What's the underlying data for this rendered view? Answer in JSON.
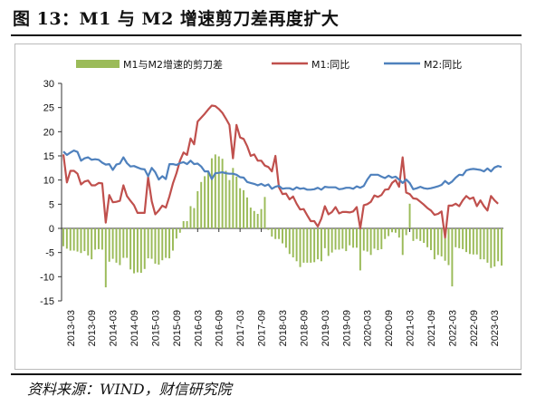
{
  "figure": {
    "title": "图 13：M1 与 M2 增速剪刀差再度扩大",
    "source": "资料来源：WIND，财信研究院"
  },
  "colors": {
    "spread": "#9bbb59",
    "m1": "#c0504d",
    "m2": "#4f81bd"
  },
  "chart_data": {
    "type": "bar+line",
    "x_start": "2013-01",
    "x_end": "2023-03",
    "x_tick_labels": [
      "2013-03",
      "2013-09",
      "2014-03",
      "2014-09",
      "2015-03",
      "2015-09",
      "2016-03",
      "2016-09",
      "2017-03",
      "2017-09",
      "2018-03",
      "2018-09",
      "2019-03",
      "2019-09",
      "2020-03",
      "2020-09",
      "2021-03",
      "2021-09",
      "2022-03",
      "2022-09",
      "2023-03"
    ],
    "ylim": [
      -15,
      30
    ],
    "y_ticks": [
      -15,
      -10,
      -5,
      0,
      5,
      10,
      15,
      20,
      25,
      30
    ],
    "grid": false,
    "legend_position": "top",
    "legend": [
      "M1与M2增速的剪刀差",
      "M1:同比",
      "M2:同比"
    ],
    "series": [
      {
        "name": "M1与M2增速的剪刀差",
        "type": "bar",
        "values": [
          -3.7,
          -4.2,
          -4.6,
          -4.6,
          -4.8,
          -5.1,
          -4.7,
          -5.6,
          -6.4,
          -4.4,
          -4.3,
          -4.4,
          -12.2,
          -6.9,
          -6.3,
          -7.1,
          -7.6,
          -6.1,
          -6.1,
          -8.5,
          -9.3,
          -9.1,
          -9.2,
          -8.4,
          -6.2,
          -6.3,
          -7.3,
          -7.5,
          -6.6,
          -6.1,
          -6.2,
          -4.6,
          -2.1,
          -0.9,
          1.5,
          1.5,
          4.6,
          4.2,
          7.7,
          9.6,
          10.8,
          11.8,
          14.5,
          15.3,
          14.9,
          14.4,
          11.9,
          10.0,
          12.5,
          10.7,
          8.3,
          7.9,
          6.4,
          4.3,
          3.6,
          3.0,
          4.0,
          6.5,
          -0.3,
          -1.7,
          -2.2,
          -2.2,
          -3.1,
          -4.0,
          -5.3,
          -6.0,
          -6.8,
          -8.0,
          -7.1,
          -7.1,
          -7.1,
          -7.0,
          -6.4,
          -6.8,
          -4.1,
          -5.7,
          -5.0,
          -4.4,
          -4.4,
          -4.2,
          -4.7,
          -3.5,
          -4.0,
          -4.0,
          -8.7,
          -4.6,
          -4.8,
          -5.5,
          -4.2,
          -4.5,
          -4.3,
          -2.2,
          -1.6,
          -0.8,
          -0.9,
          -1.9,
          -5.5,
          -1.4,
          5.1,
          -2.6,
          -2.2,
          -2.6,
          -3.0,
          -3.9,
          -4.5,
          -6.4,
          -5.5,
          -5.8,
          -6.7,
          -7.6,
          -12.0,
          -3.9,
          -4.1,
          -4.3,
          -4.9,
          -5.3,
          -5.4,
          -5.4,
          -6.4,
          -6.4,
          -7.1,
          -8.2,
          -7.9,
          -6.8,
          -7.7
        ],
        "note": "monthly, 2013-01 to 2023-03"
      },
      {
        "name": "M1:同比",
        "type": "line",
        "values": [
          15.3,
          9.5,
          11.9,
          11.9,
          11.3,
          9.1,
          9.7,
          9.9,
          8.9,
          8.9,
          9.4,
          9.3,
          1.2,
          6.9,
          5.4,
          5.5,
          5.7,
          8.9,
          6.7,
          5.7,
          4.8,
          3.2,
          3.2,
          3.2,
          10.6,
          5.6,
          2.9,
          3.7,
          4.7,
          4.3,
          6.6,
          9.3,
          11.4,
          14.0,
          15.7,
          15.2,
          18.6,
          17.4,
          22.1,
          22.9,
          23.7,
          24.6,
          25.4,
          25.3,
          24.7,
          23.9,
          22.7,
          21.4,
          14.5,
          21.4,
          18.8,
          18.5,
          17.0,
          15.0,
          15.3,
          14.0,
          14.0,
          13.0,
          12.7,
          11.8,
          15.0,
          8.5,
          7.1,
          7.2,
          6.0,
          6.6,
          5.1,
          3.9,
          4.0,
          2.7,
          1.5,
          1.5,
          0.4,
          2.0,
          4.6,
          2.9,
          3.4,
          4.4,
          3.1,
          3.4,
          3.4,
          3.3,
          3.5,
          4.4,
          0.0,
          4.8,
          5.0,
          5.5,
          6.8,
          6.5,
          6.9,
          8.0,
          8.1,
          9.4,
          10.0,
          8.6,
          14.7,
          7.4,
          7.1,
          6.2,
          6.1,
          5.5,
          4.9,
          4.2,
          3.7,
          2.8,
          3.0,
          3.5,
          -1.9,
          4.7,
          4.7,
          5.1,
          4.6,
          5.8,
          6.7,
          6.1,
          6.4,
          4.6,
          5.8,
          4.6,
          3.7,
          6.7,
          5.8,
          5.1
        ],
        "note": "monthly, 2013-01 to 2023-03"
      },
      {
        "name": "M2:同比",
        "type": "line",
        "values": [
          15.9,
          15.2,
          15.7,
          16.1,
          15.8,
          14.0,
          14.5,
          14.7,
          14.2,
          14.3,
          14.2,
          13.6,
          13.2,
          13.3,
          12.1,
          13.2,
          13.4,
          14.7,
          13.5,
          12.8,
          12.9,
          12.6,
          12.3,
          12.2,
          10.8,
          12.5,
          11.6,
          10.1,
          10.8,
          10.2,
          13.3,
          13.3,
          13.1,
          13.5,
          13.7,
          13.3,
          14.0,
          13.3,
          13.4,
          12.8,
          11.8,
          11.8,
          10.2,
          11.4,
          11.5,
          11.6,
          11.4,
          11.3,
          11.3,
          11.1,
          10.6,
          10.5,
          9.6,
          9.4,
          9.2,
          8.9,
          9.2,
          8.8,
          9.1,
          8.2,
          8.6,
          8.8,
          8.2,
          8.3,
          8.3,
          8.0,
          8.5,
          8.2,
          8.3,
          8.0,
          8.0,
          8.1,
          8.4,
          8.0,
          8.6,
          8.5,
          8.5,
          8.5,
          8.1,
          8.2,
          8.4,
          8.4,
          8.2,
          8.7,
          8.4,
          8.8,
          10.1,
          11.1,
          11.1,
          11.1,
          10.7,
          10.4,
          10.9,
          10.5,
          10.7,
          10.1,
          9.4,
          10.1,
          9.4,
          8.1,
          8.3,
          8.6,
          8.3,
          8.2,
          8.3,
          8.5,
          8.7,
          9.0,
          9.8,
          9.2,
          9.7,
          10.5,
          11.1,
          11.0,
          12.0,
          12.2,
          12.3,
          12.2,
          12.1,
          11.8,
          12.4,
          11.8,
          12.6,
          12.9,
          12.7
        ],
        "note": "monthly, 2013-01 to 2023-03"
      }
    ]
  }
}
